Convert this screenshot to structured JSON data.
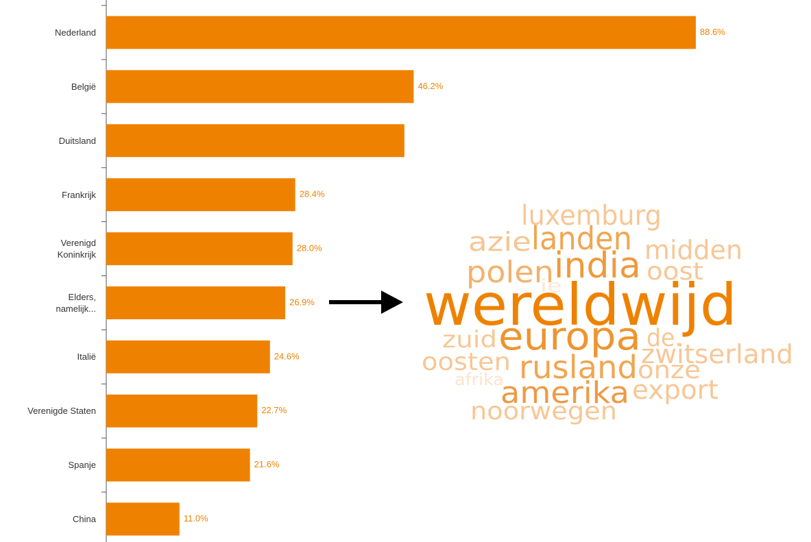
{
  "chart_data": {
    "type": "barh",
    "categories": [
      "Nederland",
      "België",
      "Duitsland",
      "Frankrijk",
      "Verenigd\nKoninkrijk",
      "Elders,\nnamelijk...",
      "Italië",
      "Verenigde Staten",
      "Spanje",
      "China"
    ],
    "values": [
      88.6,
      46.2,
      44.8,
      28.4,
      28.0,
      26.9,
      24.6,
      22.7,
      21.6,
      11.0
    ],
    "value_labels": [
      "88.6%",
      "46.2%",
      null,
      "28.4%",
      "28.0%",
      "26.9%",
      "24.6%",
      "22.7%",
      "21.6%",
      "11.0%"
    ],
    "color": "#ee8200"
  },
  "word_cloud": {
    "words": [
      {
        "text": "luxemburg",
        "color": "#f7c796"
      },
      {
        "text": "azie",
        "color": "#f6c594"
      },
      {
        "text": "landen",
        "color": "#f0a650"
      },
      {
        "text": "midden",
        "color": "#f7c796"
      },
      {
        "text": "polen",
        "color": "#f2b26c"
      },
      {
        "text": "india",
        "color": "#ee9a3c"
      },
      {
        "text": "oost",
        "color": "#f7c796"
      },
      {
        "text": "ie",
        "color": "#fce8d6"
      },
      {
        "text": "wereldwijd",
        "color": "#ee8200"
      },
      {
        "text": "zuid",
        "color": "#f7c796"
      },
      {
        "text": "europa",
        "color": "#ee9530"
      },
      {
        "text": "de.",
        "color": "#f7c796"
      },
      {
        "text": "zwitserland",
        "color": "#f7c796"
      },
      {
        "text": "oosten",
        "color": "#f7c796"
      },
      {
        "text": "rusland",
        "color": "#f0a650"
      },
      {
        "text": "onze",
        "color": "#f7c796"
      },
      {
        "text": "afrika",
        "color": "#fce4cd"
      },
      {
        "text": "amerika",
        "color": "#ee9a45"
      },
      {
        "text": "export",
        "color": "#f7c796"
      },
      {
        "text": "noorwegen",
        "color": "#f7c796"
      }
    ]
  }
}
